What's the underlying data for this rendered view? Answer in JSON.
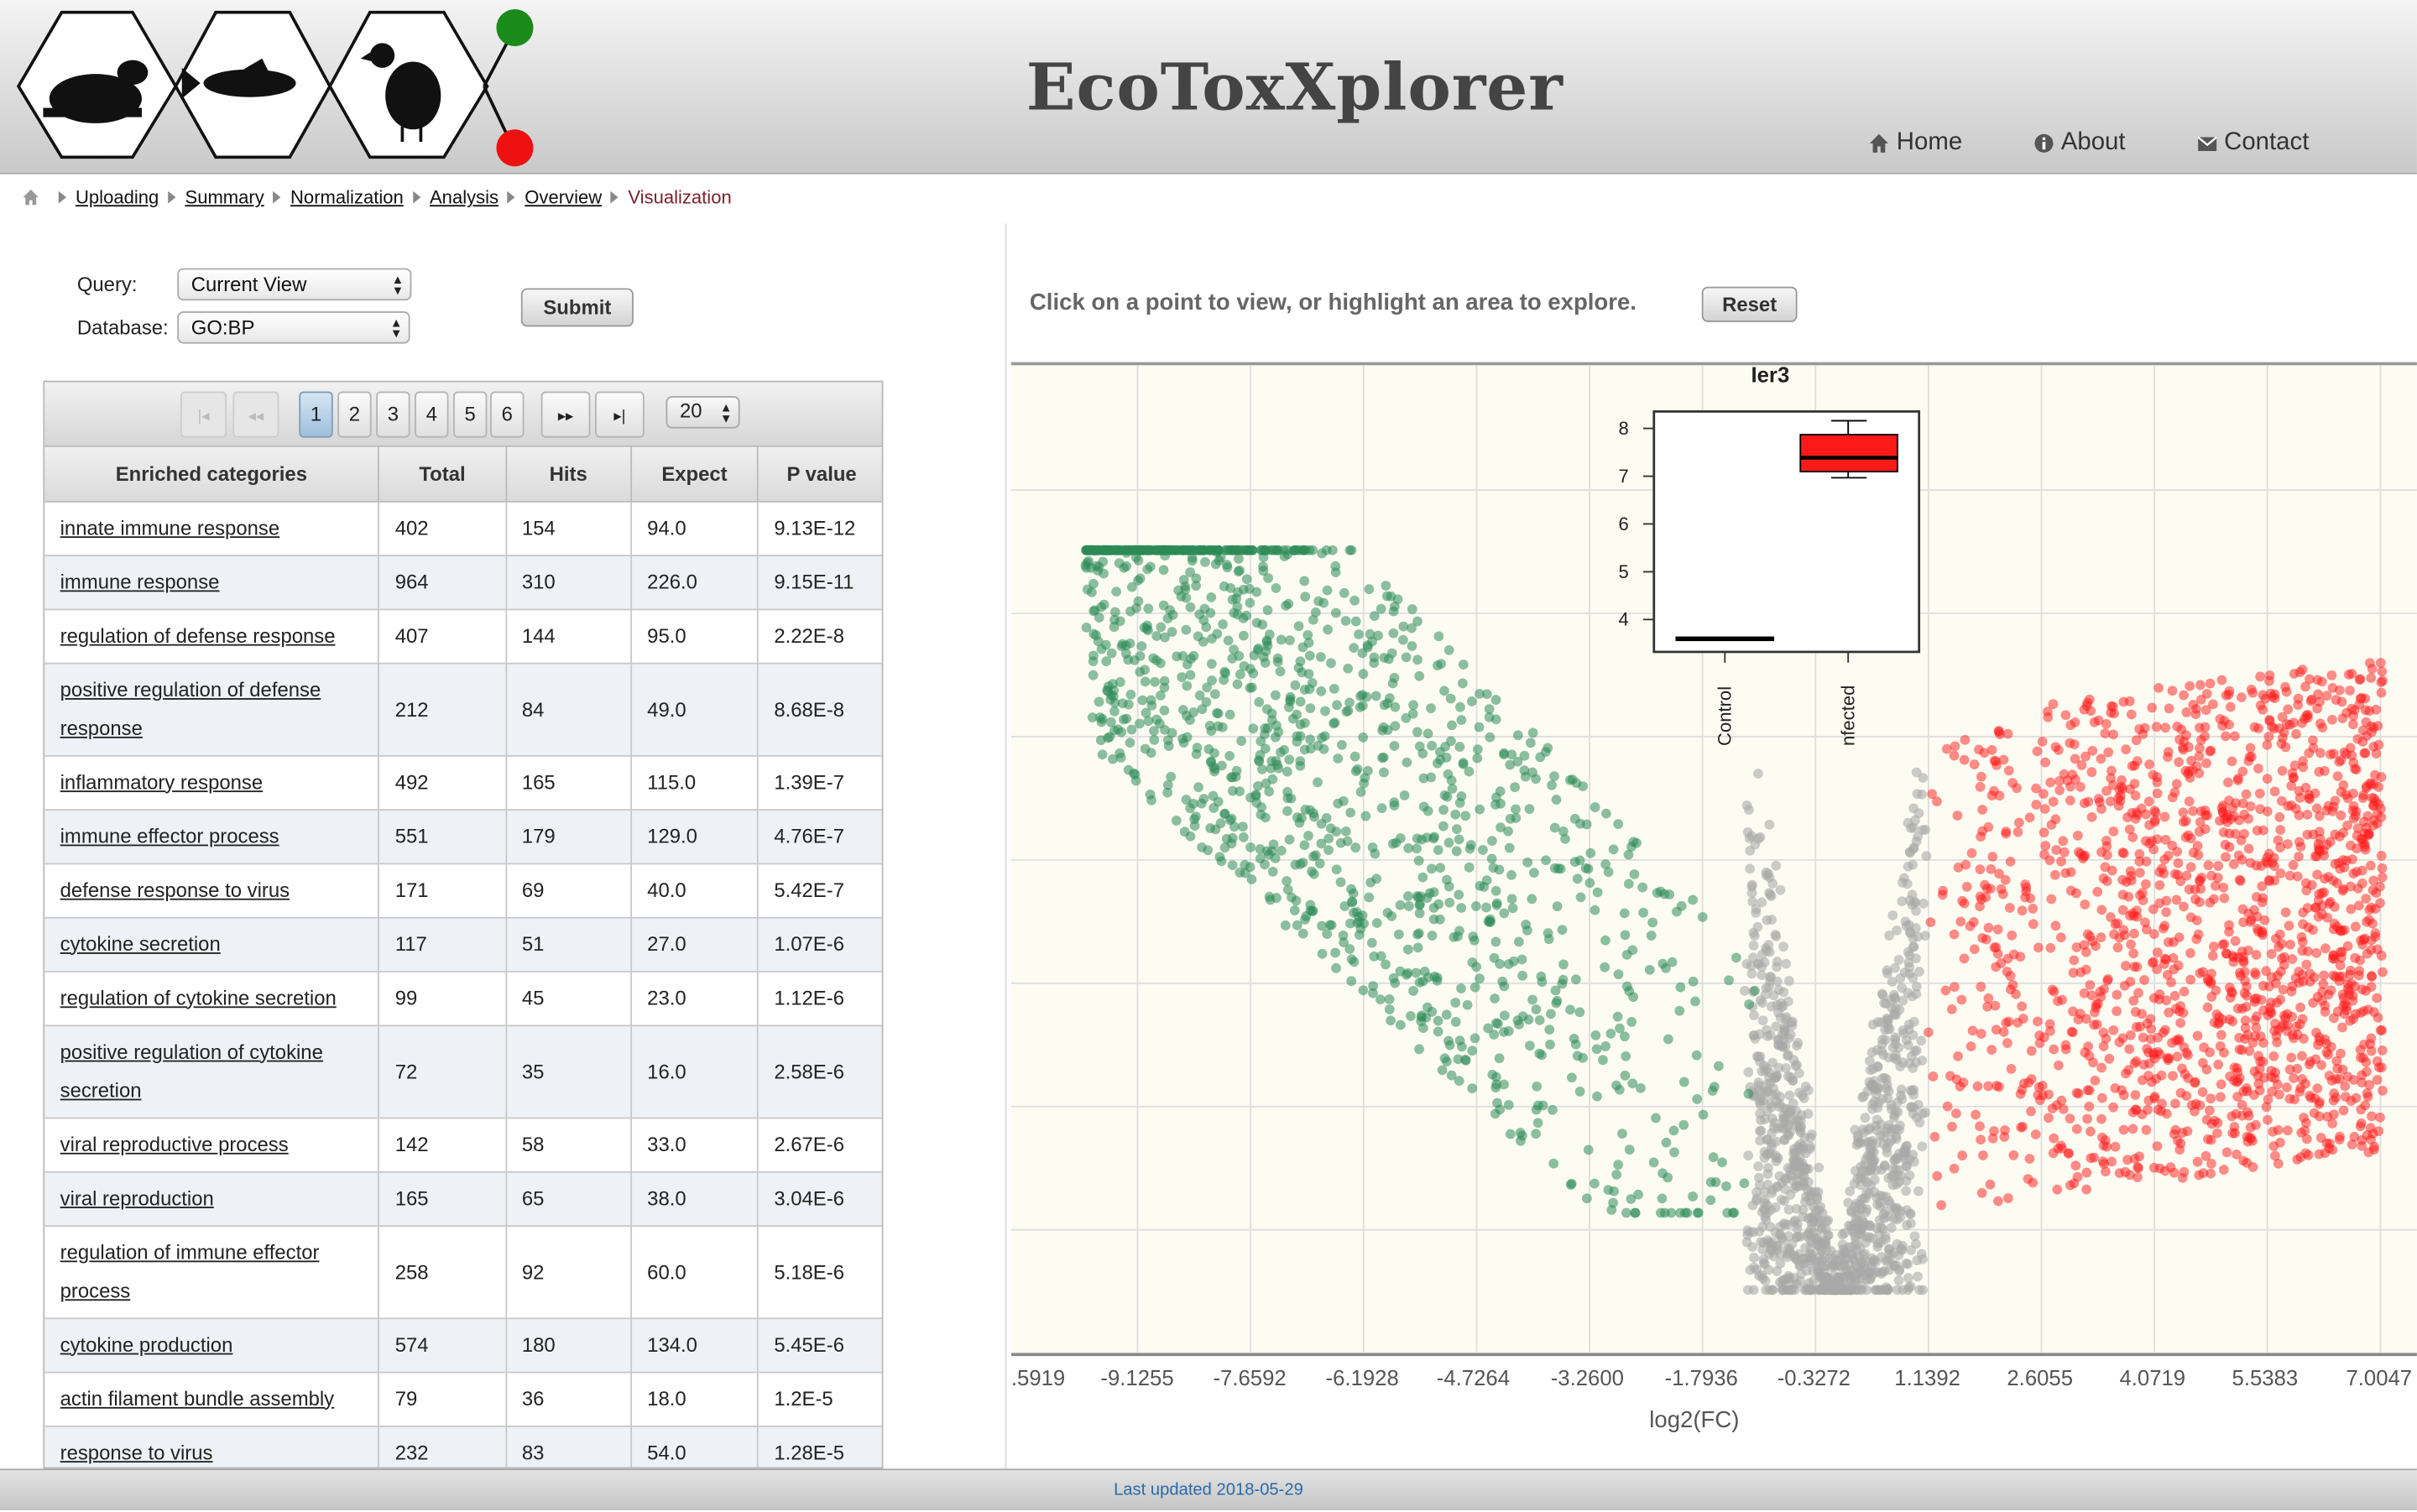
{
  "header": {
    "title": "EcoToxXplorer",
    "nav": [
      {
        "label": "Home",
        "icon": "home-icon"
      },
      {
        "label": "About",
        "icon": "info-icon"
      },
      {
        "label": "Contact",
        "icon": "envelope-icon"
      }
    ]
  },
  "breadcrumb": {
    "items": [
      "Uploading",
      "Summary",
      "Normalization",
      "Analysis",
      "Overview"
    ],
    "current": "Visualization"
  },
  "query_form": {
    "query_label": "Query:",
    "query_value": "Current View",
    "database_label": "Database:",
    "database_value": "GO:BP",
    "submit_label": "Submit"
  },
  "pagination": {
    "pages": [
      "1",
      "2",
      "3",
      "4",
      "5",
      "6"
    ],
    "active_page": "1",
    "page_size": "20"
  },
  "table": {
    "columns": [
      "Enriched categories",
      "Total",
      "Hits",
      "Expect",
      "P value"
    ],
    "rows": [
      [
        "innate immune response",
        "402",
        "154",
        "94.0",
        "9.13E-12"
      ],
      [
        "immune response",
        "964",
        "310",
        "226.0",
        "9.15E-11"
      ],
      [
        "regulation of defense response",
        "407",
        "144",
        "95.0",
        "2.22E-8"
      ],
      [
        "positive regulation of defense response",
        "212",
        "84",
        "49.0",
        "8.68E-8"
      ],
      [
        "inflammatory response",
        "492",
        "165",
        "115.0",
        "1.39E-7"
      ],
      [
        "immune effector process",
        "551",
        "179",
        "129.0",
        "4.76E-7"
      ],
      [
        "defense response to virus",
        "171",
        "69",
        "40.0",
        "5.42E-7"
      ],
      [
        "cytokine secretion",
        "117",
        "51",
        "27.0",
        "1.07E-6"
      ],
      [
        "regulation of cytokine secretion",
        "99",
        "45",
        "23.0",
        "1.12E-6"
      ],
      [
        "positive regulation of cytokine secretion",
        "72",
        "35",
        "16.0",
        "2.58E-6"
      ],
      [
        "viral reproductive process",
        "142",
        "58",
        "33.0",
        "2.67E-6"
      ],
      [
        "viral reproduction",
        "165",
        "65",
        "38.0",
        "3.04E-6"
      ],
      [
        "regulation of immune effector process",
        "258",
        "92",
        "60.0",
        "5.18E-6"
      ],
      [
        "cytokine production",
        "574",
        "180",
        "134.0",
        "5.45E-6"
      ],
      [
        "actin filament bundle assembly",
        "79",
        "36",
        "18.0",
        "1.2E-5"
      ],
      [
        "response to virus",
        "232",
        "83",
        "54.0",
        "1.28E-5"
      ]
    ]
  },
  "plot": {
    "instruction": "Click on a point to view, or highlight an area to explore.",
    "reset_label": "Reset",
    "x_ticks": [
      ".5919",
      "-9.1255",
      "-7.6592",
      "-6.1928",
      "-4.7264",
      "-3.2600",
      "-1.7936",
      "-0.3272",
      "1.1392",
      "2.6055",
      "4.0719",
      "5.5383",
      "7.0047"
    ],
    "x_label": "log2(FC)",
    "colors": {
      "down": "#2e8b57",
      "up": "#ff1a1a",
      "neutral": "#a9a9a9"
    },
    "boxplot": {
      "title": "Ier3",
      "y_ticks": [
        "8",
        "7",
        "6",
        "5",
        "4"
      ],
      "groups": [
        "Control",
        "nfected"
      ],
      "colors": {
        "control": "#000000",
        "infected": "#ff0000"
      }
    }
  },
  "footer": {
    "text": "Last updated 2018-05-29"
  }
}
